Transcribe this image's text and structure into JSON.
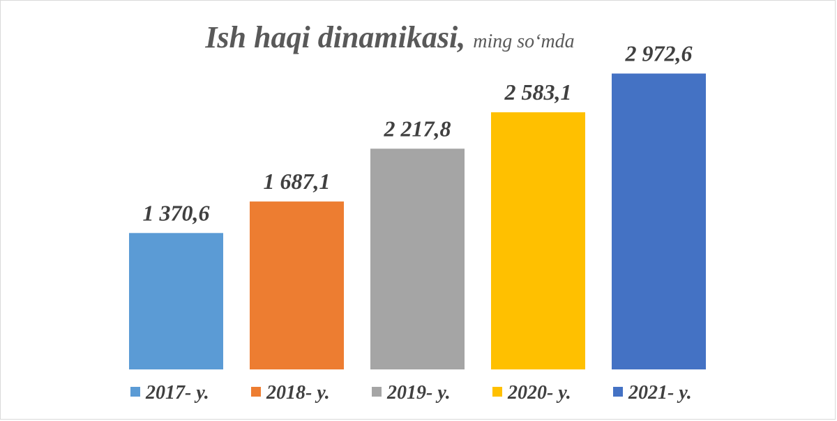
{
  "chart_data": {
    "type": "bar",
    "title": "Ish haqi dinamikasi",
    "subtitle": "ming so‘mda",
    "categories": [
      "2017- y.",
      "2018- y.",
      "2019- y.",
      "2020- y.",
      "2021- y."
    ],
    "values": [
      1370.6,
      1687.1,
      2217.8,
      2583.1,
      2972.6
    ],
    "data_labels": [
      "1 370,6",
      "1 687,1",
      "2 217,8",
      "2 583,1",
      "2 972,6"
    ],
    "colors": [
      "#5b9bd5",
      "#ed7d31",
      "#a5a5a5",
      "#ffc000",
      "#4472c4"
    ],
    "ylim": [
      0,
      3500
    ],
    "grid": false,
    "legend": "bottom",
    "xlabel": "",
    "ylabel": ""
  }
}
